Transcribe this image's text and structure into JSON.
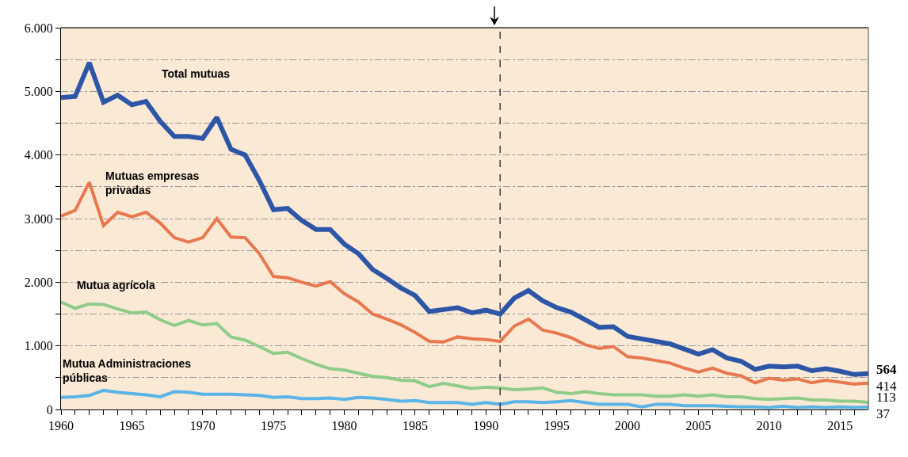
{
  "chart_data": {
    "type": "line",
    "x": [
      1960,
      1961,
      1962,
      1963,
      1964,
      1965,
      1966,
      1967,
      1968,
      1969,
      1970,
      1971,
      1972,
      1973,
      1974,
      1975,
      1976,
      1977,
      1978,
      1979,
      1980,
      1981,
      1982,
      1983,
      1984,
      1985,
      1986,
      1987,
      1988,
      1989,
      1990,
      1991,
      1992,
      1993,
      1994,
      1995,
      1996,
      1997,
      1998,
      1999,
      2000,
      2001,
      2002,
      2003,
      2004,
      2005,
      2006,
      2007,
      2008,
      2009,
      2010,
      2011,
      2012,
      2013,
      2014,
      2015,
      2016,
      2017
    ],
    "series": [
      {
        "name": "Total mutuas",
        "color": "#2e56a6",
        "values": [
          4900,
          4920,
          5450,
          4830,
          4940,
          4790,
          4840,
          4530,
          4290,
          4290,
          4260,
          4590,
          4090,
          4000,
          3600,
          3140,
          3160,
          2970,
          2830,
          2830,
          2600,
          2450,
          2200,
          2060,
          1910,
          1790,
          1540,
          1570,
          1600,
          1520,
          1560,
          1500,
          1750,
          1870,
          1710,
          1600,
          1530,
          1410,
          1290,
          1300,
          1150,
          1110,
          1070,
          1030,
          950,
          870,
          940,
          810,
          760,
          630,
          680,
          670,
          680,
          610,
          640,
          600,
          550,
          564
        ],
        "value_labels": [
          null,
          null,
          null,
          null,
          null,
          null,
          null,
          null,
          null,
          null,
          null,
          null,
          null,
          null,
          null,
          null,
          null,
          null,
          null,
          null,
          null,
          null,
          null,
          null,
          null,
          null,
          null,
          null,
          null,
          null,
          null,
          null,
          null,
          null,
          null,
          null,
          null,
          null,
          null,
          null,
          null,
          null,
          null,
          null,
          null,
          null,
          null,
          null,
          null,
          null,
          null,
          null,
          null,
          null,
          null,
          null,
          null,
          "564"
        ]
      },
      {
        "name": "Mutuas empresas privadas",
        "color": "#e8784f",
        "values": [
          3040,
          3130,
          3570,
          2890,
          3100,
          3030,
          3100,
          2930,
          2700,
          2630,
          2700,
          3000,
          2710,
          2700,
          2450,
          2090,
          2070,
          2000,
          1940,
          2010,
          1820,
          1690,
          1500,
          1420,
          1330,
          1210,
          1070,
          1060,
          1140,
          1110,
          1100,
          1070,
          1310,
          1420,
          1250,
          1200,
          1130,
          1020,
          960,
          990,
          830,
          810,
          770,
          730,
          650,
          590,
          650,
          570,
          530,
          420,
          490,
          460,
          480,
          420,
          460,
          430,
          400,
          414
        ],
        "value_labels": [
          null,
          null,
          null,
          null,
          null,
          null,
          null,
          null,
          null,
          null,
          null,
          null,
          null,
          null,
          null,
          null,
          null,
          null,
          null,
          null,
          null,
          null,
          null,
          null,
          null,
          null,
          null,
          null,
          null,
          null,
          null,
          null,
          null,
          null,
          null,
          null,
          null,
          null,
          null,
          null,
          null,
          null,
          null,
          null,
          null,
          null,
          null,
          null,
          null,
          null,
          null,
          null,
          null,
          null,
          null,
          null,
          null,
          "414"
        ]
      },
      {
        "name": "Mutua agrícola",
        "color": "#8fcc8a",
        "values": [
          1690,
          1590,
          1660,
          1650,
          1580,
          1520,
          1530,
          1410,
          1320,
          1400,
          1330,
          1350,
          1140,
          1090,
          990,
          880,
          900,
          800,
          710,
          640,
          620,
          570,
          520,
          500,
          460,
          450,
          360,
          410,
          370,
          330,
          350,
          340,
          310,
          320,
          340,
          270,
          250,
          280,
          250,
          230,
          230,
          230,
          210,
          210,
          230,
          210,
          230,
          200,
          200,
          170,
          160,
          170,
          180,
          150,
          150,
          130,
          130,
          113
        ],
        "value_labels": [
          null,
          null,
          null,
          null,
          null,
          null,
          null,
          null,
          null,
          null,
          null,
          null,
          null,
          null,
          null,
          null,
          null,
          null,
          null,
          null,
          null,
          null,
          null,
          null,
          null,
          null,
          null,
          null,
          null,
          null,
          null,
          null,
          null,
          null,
          null,
          null,
          null,
          null,
          null,
          null,
          null,
          null,
          null,
          null,
          null,
          null,
          null,
          null,
          null,
          null,
          null,
          null,
          null,
          null,
          null,
          null,
          null,
          "113"
        ]
      },
      {
        "name": "Mutua Administraciones públicas",
        "color": "#5ab4e6",
        "values": [
          190,
          200,
          220,
          300,
          270,
          250,
          230,
          200,
          280,
          270,
          240,
          240,
          240,
          230,
          220,
          190,
          200,
          170,
          170,
          180,
          160,
          190,
          180,
          160,
          130,
          140,
          110,
          110,
          110,
          80,
          110,
          80,
          120,
          120,
          110,
          120,
          140,
          110,
          80,
          80,
          80,
          40,
          80,
          80,
          60,
          60,
          60,
          50,
          40,
          40,
          30,
          50,
          30,
          40,
          30,
          40,
          30,
          37
        ],
        "value_labels": [
          null,
          null,
          null,
          null,
          null,
          null,
          null,
          null,
          null,
          null,
          null,
          null,
          null,
          null,
          null,
          null,
          null,
          null,
          null,
          null,
          null,
          null,
          null,
          null,
          null,
          null,
          null,
          null,
          null,
          null,
          null,
          null,
          null,
          null,
          null,
          null,
          null,
          null,
          null,
          null,
          null,
          null,
          null,
          null,
          null,
          null,
          null,
          null,
          null,
          null,
          null,
          null,
          null,
          null,
          null,
          null,
          null,
          "37"
        ]
      }
    ],
    "xlim": [
      1960,
      2017
    ],
    "xticks": [
      1960,
      {
        "value": 1961,
        "label": null
      },
      {
        "value": 1962,
        "label": null
      },
      {
        "value": 1963,
        "label": null
      },
      {
        "value": 1964,
        "label": null
      },
      1965,
      {
        "value": 1966,
        "label": null
      },
      {
        "value": 1967,
        "label": null
      },
      {
        "value": 1968,
        "label": null
      },
      {
        "value": 1969,
        "label": null
      },
      1970,
      {
        "value": 1971,
        "label": null
      },
      {
        "value": 1972,
        "label": null
      },
      {
        "value": 1973,
        "label": null
      },
      {
        "value": 1974,
        "label": null
      },
      1975,
      {
        "value": 1976,
        "label": null
      },
      {
        "value": 1977,
        "label": null
      },
      {
        "value": 1978,
        "label": null
      },
      {
        "value": 1979,
        "label": null
      },
      1980,
      {
        "value": 1981,
        "label": null
      },
      {
        "value": 1982,
        "label": null
      },
      {
        "value": 1983,
        "label": null
      },
      {
        "value": 1984,
        "label": null
      },
      1985,
      {
        "value": 1986,
        "label": null
      },
      {
        "value": 1987,
        "label": null
      },
      {
        "value": 1988,
        "label": null
      },
      {
        "value": 1989,
        "label": null
      },
      1990,
      {
        "value": 1991,
        "label": null
      },
      {
        "value": 1992,
        "label": null
      },
      {
        "value": 1993,
        "label": null
      },
      {
        "value": 1994,
        "label": null
      },
      1995,
      {
        "value": 1996,
        "label": null
      },
      {
        "value": 1997,
        "label": null
      },
      {
        "value": 1998,
        "label": null
      },
      {
        "value": 1999,
        "label": null
      },
      2000,
      {
        "value": 2001,
        "label": null
      },
      {
        "value": 2002,
        "label": null
      },
      {
        "value": 2003,
        "label": null
      },
      {
        "value": 2004,
        "label": null
      },
      2005,
      {
        "value": 2006,
        "label": null
      },
      {
        "value": 2007,
        "label": null
      },
      {
        "value": 2008,
        "label": null
      },
      {
        "value": 2009,
        "label": null
      },
      2010,
      {
        "value": 2011,
        "label": null
      },
      {
        "value": 2012,
        "label": null
      },
      {
        "value": 2013,
        "label": null
      },
      {
        "value": 2014,
        "label": null
      },
      2015,
      {
        "value": 2016,
        "label": null
      }
    ],
    "ylim": [
      0,
      6000
    ],
    "yticks": [
      0,
      {
        "value": 500,
        "label": null
      },
      {
        "value": 1000,
        "label": "1.000"
      },
      {
        "value": 1500,
        "label": null
      },
      {
        "value": 2000,
        "label": "2.000"
      },
      {
        "value": 2500,
        "label": null
      },
      {
        "value": 3000,
        "label": "3.000"
      },
      {
        "value": 3500,
        "label": null
      },
      {
        "value": 4000,
        "label": "4.000"
      },
      {
        "value": 4500,
        "label": null
      },
      {
        "value": 5000,
        "label": "5.000"
      },
      {
        "value": 5500,
        "label": null
      },
      {
        "value": 6000,
        "label": "6.000"
      }
    ],
    "grid": "y",
    "ref_lines": [
      {
        "axis": "x",
        "value": 1991,
        "color": "#222222",
        "line_style": "dashed"
      }
    ],
    "legend": false,
    "marker": "none",
    "line_style": "solid"
  }
}
